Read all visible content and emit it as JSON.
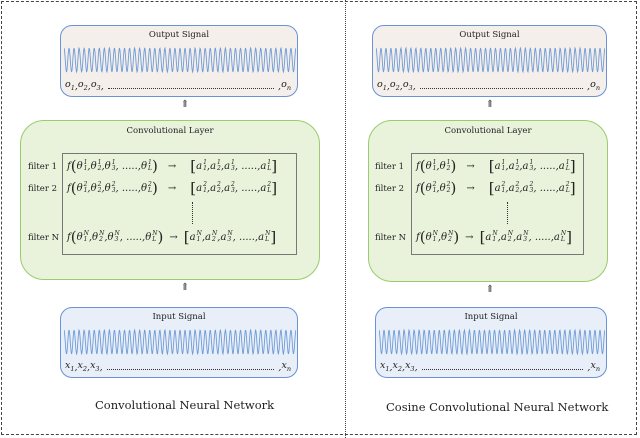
{
  "colors": {
    "wave": "#6f9bd6",
    "signal_border": "#6a92d4",
    "output_bg": "#f4efeb",
    "input_bg": "#e8eff9",
    "conv_bg": "#e9f3dc",
    "conv_border": "#9bcb6a"
  },
  "left": {
    "caption": "Convolutional Neural Network",
    "output": {
      "title": "Output Signal",
      "seq_start": [
        "o_1",
        "o_2",
        "o_3"
      ],
      "seq_end": "o_n"
    },
    "conv": {
      "title": "Convolutional Layer",
      "rows": [
        {
          "label": "filter 1",
          "sup": "1",
          "params": [
            "1",
            "2",
            "3",
            "L"
          ],
          "outputs": [
            "1",
            "2",
            "3",
            "L"
          ]
        },
        {
          "label": "filter 2",
          "sup": "2",
          "params": [
            "1",
            "2",
            "3",
            "L"
          ],
          "outputs": [
            "1",
            "2",
            "3",
            "L"
          ]
        },
        {
          "label": "filter N",
          "sup": "N",
          "params": [
            "1",
            "2",
            "3",
            "L"
          ],
          "outputs": [
            "1",
            "2",
            "3",
            "L"
          ]
        }
      ]
    },
    "input": {
      "title": "Input Signal",
      "seq_start": [
        "x_1",
        "x_2",
        "x_3"
      ],
      "seq_end": "x_n"
    }
  },
  "right": {
    "caption": "Cosine Convolutional Neural Network",
    "output": {
      "title": "Output Signal",
      "seq_start": [
        "o_1",
        "o_2",
        "o_3"
      ],
      "seq_end": "o_n"
    },
    "conv": {
      "title": "Convolutional Layer",
      "rows": [
        {
          "label": "filter 1",
          "sup": "1",
          "params": [
            "1",
            "2"
          ],
          "outputs": [
            "1",
            "2",
            "3",
            "L"
          ]
        },
        {
          "label": "filter 2",
          "sup": "2",
          "params": [
            "1",
            "2"
          ],
          "outputs": [
            "1",
            "2",
            "3",
            "L"
          ]
        },
        {
          "label": "filter N",
          "sup": "N",
          "params": [
            "1",
            "2"
          ],
          "outputs": [
            "1",
            "2",
            "3",
            "L"
          ]
        }
      ]
    },
    "input": {
      "title": "Input Signal",
      "seq_start": [
        "x_1",
        "x_2",
        "x_3"
      ],
      "seq_end": "x_n"
    }
  },
  "symbols": {
    "function": "f",
    "param": "θ",
    "activation": "a",
    "arrow": "→",
    "up_arrow": "⇑",
    "ellipsis": "....."
  }
}
